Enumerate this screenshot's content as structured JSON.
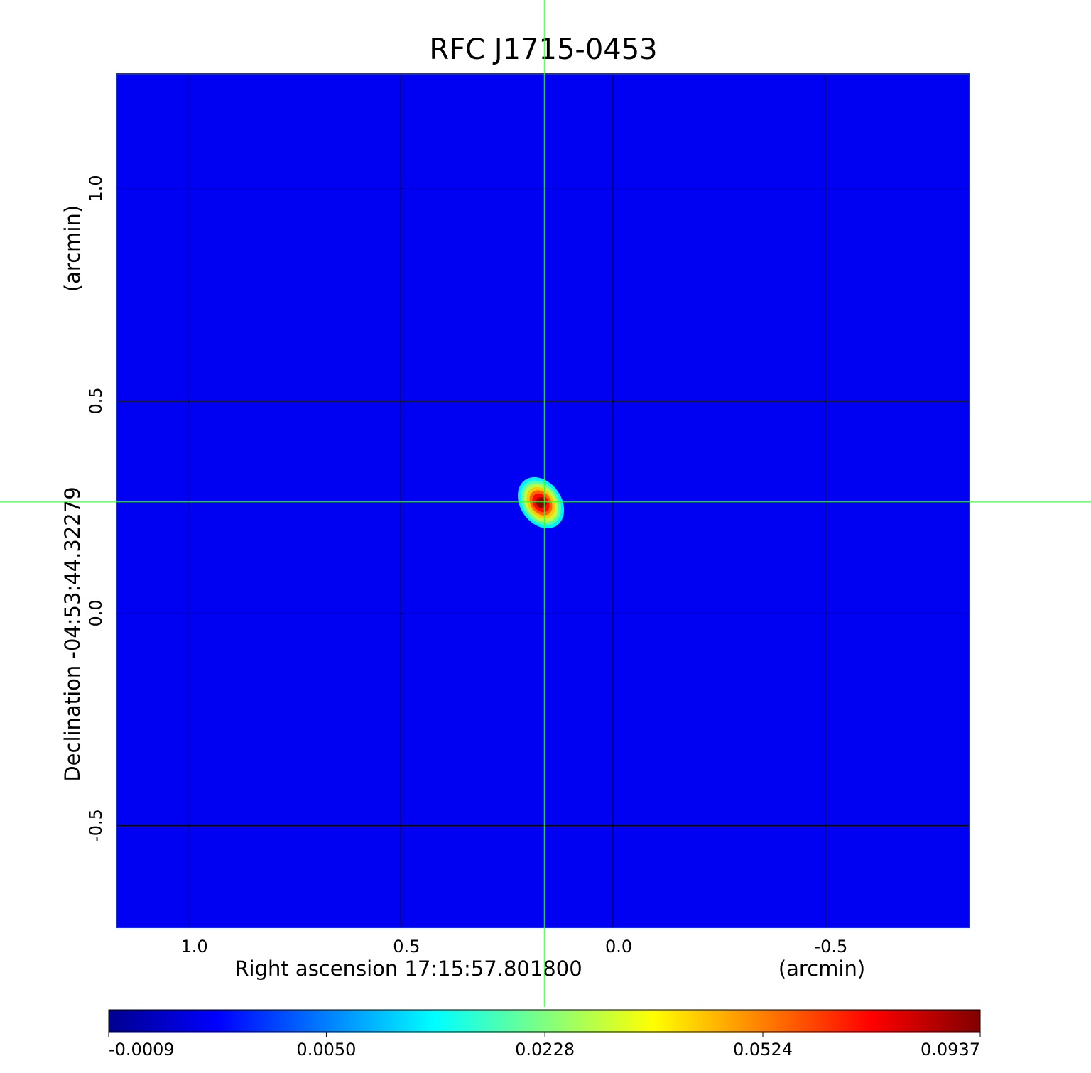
{
  "chart_data": {
    "type": "image",
    "title": "RFC J1715-0453",
    "title_color": "#1414d2",
    "x_label": "Right ascension  17:15:57.801800",
    "x_unit": "(arcmin)",
    "y_label": "Declination  -04:53:44.32279",
    "y_unit": "(arcmin)",
    "xlim": [
      1.17,
      -0.84
    ],
    "ylim": [
      -0.74,
      1.27
    ],
    "xticks": [
      {
        "value": 1,
        "label": "1.0"
      },
      0.5,
      {
        "value": 0,
        "label": "0.0"
      },
      -0.5
    ],
    "yticks": [
      {
        "value": 1,
        "label": "1.0"
      },
      0.5,
      {
        "value": 0,
        "label": "0.0"
      },
      -0.5
    ],
    "grid": true,
    "colormap": "jet",
    "colorbar": {
      "scale": "sqrt",
      "lim": [
        -0.0009,
        0.0937
      ],
      "ticks": [
        -0.0009,
        {
          "value": 0.005,
          "label": "0.0050"
        },
        0.0228,
        0.0524,
        0.0937
      ]
    },
    "background_level": 0.0003,
    "source": {
      "x": 0.17,
      "y": 0.26,
      "peak": 0.0937
    },
    "crosshair": {
      "x": 0.162,
      "y": 0.262,
      "color": "#33ff33"
    }
  }
}
